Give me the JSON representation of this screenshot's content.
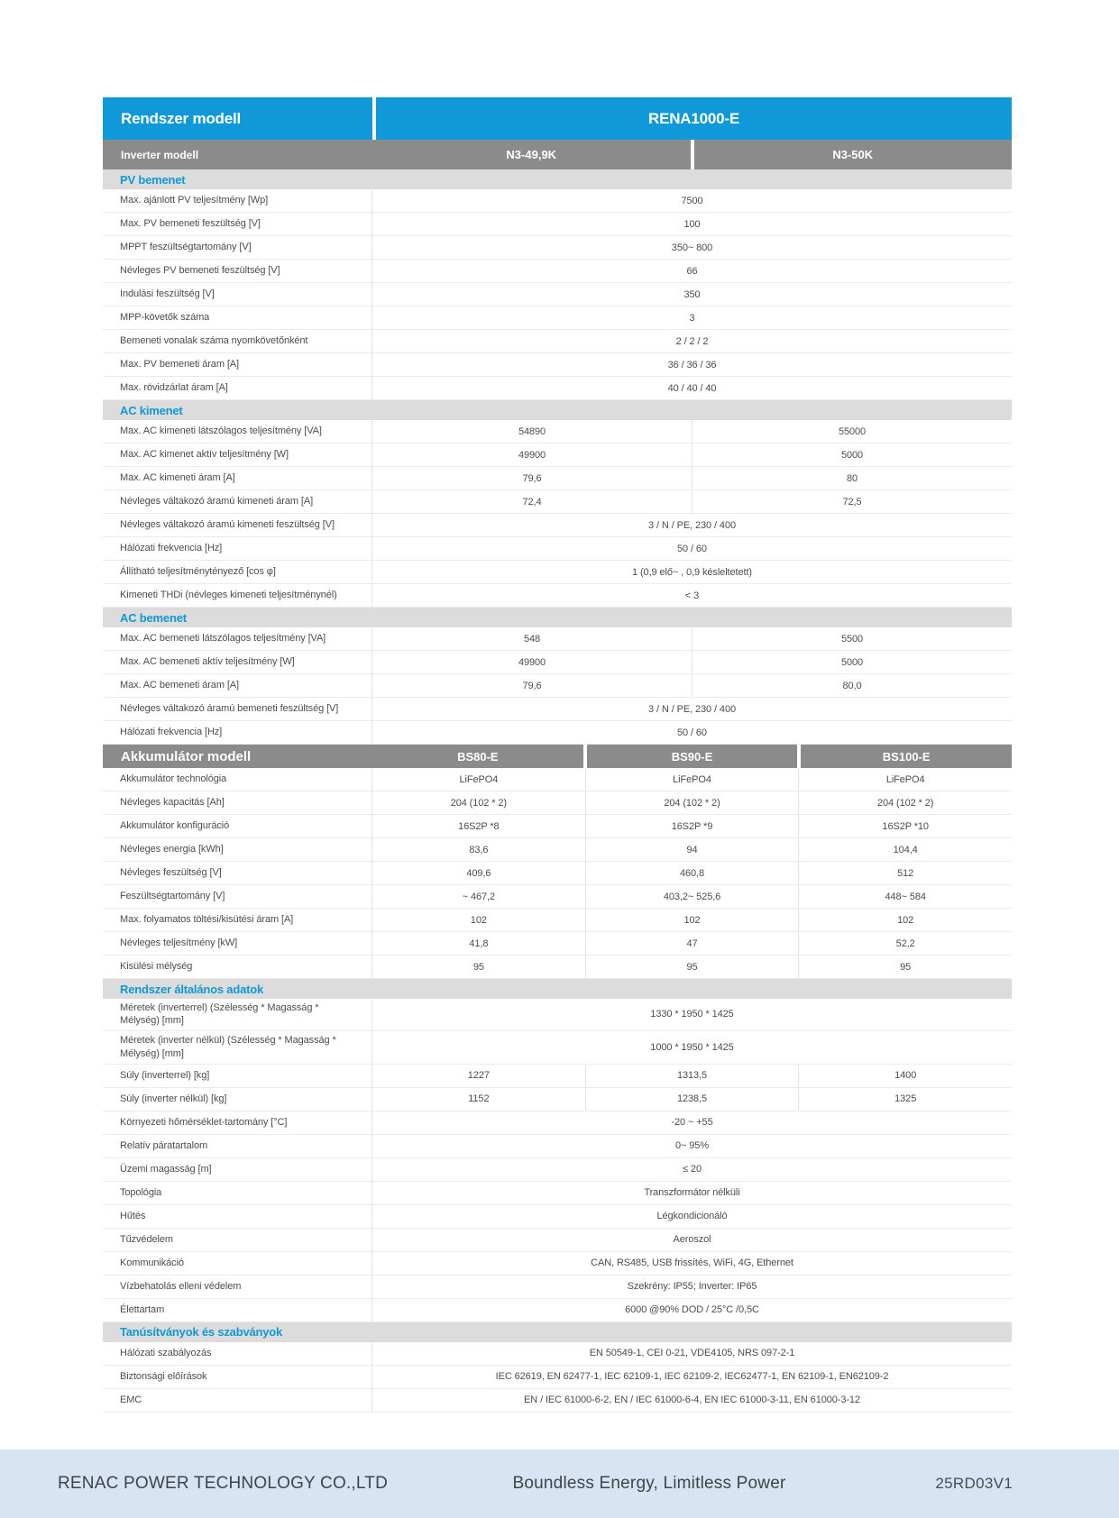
{
  "colors": {
    "brand_blue": "#0f99d8",
    "band_gray": "#8b8b8b",
    "section_band_bg": "#dcdcdc",
    "footer_bg": "#d7e4f3"
  },
  "header": {
    "model_label": "Rendszer modell",
    "model_value": "RENA1000-E"
  },
  "table": {
    "blocks": [
      {
        "kind": "model_band",
        "variant": "inverter",
        "label": "Inverter modell",
        "cols": [
          "N3-49,9K",
          "N3-50K"
        ]
      },
      {
        "kind": "section",
        "title": "PV bemenet"
      },
      {
        "kind": "row",
        "label": "Max. ajánlott PV teljesítmény [Wp]",
        "values": [
          "7500"
        ]
      },
      {
        "kind": "row",
        "label": "Max. PV bemeneti feszültség [V]",
        "values": [
          "100"
        ]
      },
      {
        "kind": "row",
        "label": "MPPT feszültségtartomány [V]",
        "values": [
          "350~ 800"
        ]
      },
      {
        "kind": "row",
        "label": "Névleges PV bemeneti feszültség [V]",
        "values": [
          "66"
        ]
      },
      {
        "kind": "row",
        "label": "Indulási feszültség [V]",
        "values": [
          "350"
        ]
      },
      {
        "kind": "row",
        "label": "MPP-követők száma",
        "values": [
          "3"
        ]
      },
      {
        "kind": "row",
        "label": "Bemeneti vonalak száma nyomkövetőnként",
        "values": [
          "2 / 2 / 2"
        ]
      },
      {
        "kind": "row",
        "label": "Max. PV bemeneti áram [A]",
        "values": [
          "36 / 36 / 36"
        ]
      },
      {
        "kind": "row",
        "label": "Max. rövidzárlat áram [A]",
        "values": [
          "40 / 40 / 40"
        ]
      },
      {
        "kind": "section",
        "title": "AC kimenet"
      },
      {
        "kind": "row",
        "label": "Max. AC kimeneti látszólagos teljesítmény [VA]",
        "values": [
          "54890",
          "55000"
        ]
      },
      {
        "kind": "row",
        "label": "Max. AC kimenet aktív teljesítmény [W]",
        "values": [
          "49900",
          "5000"
        ]
      },
      {
        "kind": "row",
        "label": "Max. AC kimeneti áram [A]",
        "values": [
          "79,6",
          "80"
        ]
      },
      {
        "kind": "row",
        "label": "Névleges váltakozó áramú kimeneti áram [A]",
        "values": [
          "72,4",
          "72,5"
        ]
      },
      {
        "kind": "row",
        "label": "Névleges váltakozó áramú kimeneti feszültség [V]",
        "values": [
          "3 / N / PE, 230 / 400"
        ]
      },
      {
        "kind": "row",
        "label": "Hálózati frekvencia [Hz]",
        "values": [
          "50 / 60"
        ]
      },
      {
        "kind": "row",
        "label": "Állítható teljesítménytényező [cos φ]",
        "values": [
          "1 (0,9 elő~ , 0,9 késleltetett)"
        ]
      },
      {
        "kind": "row",
        "label": "Kimeneti THDi (névleges kimeneti teljesítménynél)",
        "values": [
          "< 3"
        ]
      },
      {
        "kind": "section",
        "title": "AC bemenet"
      },
      {
        "kind": "row",
        "label": "Max. AC bemeneti látszólagos teljesítmény [VA]",
        "values": [
          "548",
          "5500"
        ]
      },
      {
        "kind": "row",
        "label": "Max. AC bemeneti aktív teljesítmény [W]",
        "values": [
          "49900",
          "5000"
        ]
      },
      {
        "kind": "row",
        "label": "Max. AC bemeneti áram [A]",
        "values": [
          "79,6",
          "80,0"
        ]
      },
      {
        "kind": "row",
        "label": "Névleges váltakozó áramú bemeneti feszültség [V]",
        "values": [
          "3 / N / PE, 230 / 400"
        ]
      },
      {
        "kind": "row",
        "label": "Hálózati frekvencia [Hz]",
        "values": [
          "50 / 60"
        ]
      },
      {
        "kind": "model_band",
        "variant": "battery",
        "label": "Akkumulátor modell",
        "cols": [
          "BS80-E",
          "BS90-E",
          "BS100-E"
        ]
      },
      {
        "kind": "row",
        "label": "Akkumulátor technológia",
        "values": [
          "LiFePO4",
          "LiFePO4",
          "LiFePO4"
        ]
      },
      {
        "kind": "row",
        "label": "Névleges kapacitás [Ah]",
        "values": [
          "204 (102 * 2)",
          "204 (102 * 2)",
          "204 (102 * 2)"
        ]
      },
      {
        "kind": "row",
        "label": "Akkumulátor konfiguráció",
        "values": [
          "16S2P *8",
          "16S2P *9",
          "16S2P *10"
        ]
      },
      {
        "kind": "row",
        "label": "Névleges energia [kWh]",
        "values": [
          "83,6",
          "94",
          "104,4"
        ]
      },
      {
        "kind": "row",
        "label": "Névleges feszültség [V]",
        "values": [
          "409,6",
          "460,8",
          "512"
        ]
      },
      {
        "kind": "row",
        "label": "Feszültségtartomány [V]",
        "values": [
          "~ 467,2",
          "403,2~ 525,6",
          "448~ 584"
        ]
      },
      {
        "kind": "row",
        "label": "Max. folyamatos töltési/kisütési áram [A]",
        "values": [
          "102",
          "102",
          "102"
        ]
      },
      {
        "kind": "row",
        "label": "Névleges teljesítmény [kW]",
        "values": [
          "41,8",
          "47",
          "52,2"
        ]
      },
      {
        "kind": "row",
        "label": "Kisülési mélység",
        "values": [
          "95",
          "95",
          "95"
        ]
      },
      {
        "kind": "section",
        "title": "Rendszer általános adatok"
      },
      {
        "kind": "row",
        "label": "Méretek (inverterrel) (Szélesség * Magasság * Mélység) [mm]",
        "values": [
          "1330 * 1950 * 1425"
        ]
      },
      {
        "kind": "row",
        "tall": true,
        "label": "Méretek (inverter nélkül) (Szélesség * Magasság * Mélység) [mm]",
        "values": [
          "1000 * 1950 * 1425"
        ]
      },
      {
        "kind": "row",
        "label": "Súly (inverterrel) [kg]",
        "values": [
          "1227",
          "1313,5",
          "1400"
        ]
      },
      {
        "kind": "row",
        "label": "Súly (inverter nélkül) [kg]",
        "values": [
          "1152",
          "1238,5",
          "1325"
        ]
      },
      {
        "kind": "row",
        "label": "Környezeti hőmérséklet-tartomány [°C]",
        "values": [
          "-20 ~ +55"
        ]
      },
      {
        "kind": "row",
        "label": "Relatív páratartalom",
        "values": [
          "0~ 95%"
        ]
      },
      {
        "kind": "row",
        "label": "Üzemi magasság [m]",
        "values": [
          "≤ 20"
        ]
      },
      {
        "kind": "row",
        "label": "Topológia",
        "values": [
          "Transzformátor nélküli"
        ]
      },
      {
        "kind": "row",
        "label": "Hűtés",
        "values": [
          "Légkondicionáló"
        ]
      },
      {
        "kind": "row",
        "label": "Tűzvédelem",
        "values": [
          "Aeroszol"
        ]
      },
      {
        "kind": "row",
        "label": "Kommunikáció",
        "values": [
          "CAN, RS485, USB frissítés, WiFi, 4G, Ethernet"
        ]
      },
      {
        "kind": "row",
        "label": "Vízbehatolás elleni védelem",
        "values": [
          "Szekrény: IP55; Inverter: IP65"
        ]
      },
      {
        "kind": "row",
        "label": "Élettartam",
        "values": [
          "6000 @90% DOD / 25°C /0,5C"
        ]
      },
      {
        "kind": "section",
        "title": "Tanúsítványok és szabványok"
      },
      {
        "kind": "row",
        "label": "Hálózati szabályozás",
        "values": [
          "EN 50549-1, CEI 0-21, VDE4105, NRS 097-2-1"
        ]
      },
      {
        "kind": "row",
        "label": "Biztonsági előírások",
        "values": [
          "IEC 62619, EN 62477-1, IEC 62109-1, IEC 62109-2, IEC62477-1, EN 62109-1, EN62109-2"
        ]
      },
      {
        "kind": "row",
        "label": "EMC",
        "values": [
          "EN / IEC 61000-6-2, EN / IEC 61000-6-4, EN IEC 61000-3-11, EN 61000-3-12"
        ]
      }
    ]
  },
  "footer": {
    "company": "RENAC POWER TECHNOLOGY CO.,LTD",
    "slogan": "Boundless Energy, Limitless Power",
    "doc_code": "25RD03V1"
  }
}
